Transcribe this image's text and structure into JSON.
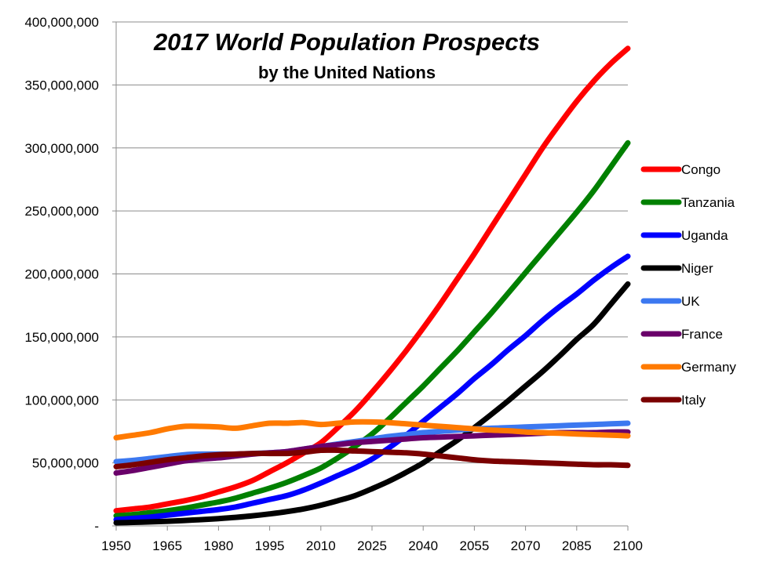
{
  "chart_data": {
    "type": "line",
    "title": "2017 World Population Prospects",
    "subtitle": "by the United Nations",
    "xlabel": "",
    "ylabel": "",
    "xlim": [
      1950,
      2100
    ],
    "ylim": [
      0,
      400000000
    ],
    "x_ticks": [
      1950,
      1965,
      1980,
      1995,
      2010,
      2025,
      2040,
      2055,
      2070,
      2085,
      2100
    ],
    "y_ticks": [
      0,
      50000000,
      100000000,
      150000000,
      200000000,
      250000000,
      300000000,
      350000000,
      400000000
    ],
    "y_tick_labels": [
      "-",
      "50,000,000",
      "100,000,000",
      "150,000,000",
      "200,000,000",
      "250,000,000",
      "300,000,000",
      "350,000,000",
      "400,000,000"
    ],
    "x_tick_labels": [
      "1950",
      "1965",
      "1980",
      "1995",
      "2010",
      "2025",
      "2040",
      "2055",
      "2070",
      "2085",
      "2100"
    ],
    "grid": true,
    "legend_position": "right",
    "x": [
      1950,
      1955,
      1960,
      1965,
      1970,
      1975,
      1980,
      1985,
      1990,
      1995,
      2000,
      2005,
      2010,
      2015,
      2020,
      2025,
      2030,
      2035,
      2040,
      2045,
      2050,
      2055,
      2060,
      2065,
      2070,
      2075,
      2080,
      2085,
      2090,
      2095,
      2100
    ],
    "series": [
      {
        "name": "Congo",
        "color": "#ff0000",
        "values": [
          12000000,
          13500000,
          15000000,
          17500000,
          20000000,
          23000000,
          27000000,
          31000000,
          36000000,
          43000000,
          50000000,
          58000000,
          66000000,
          78000000,
          91000000,
          106000000,
          122000000,
          139000000,
          157000000,
          176000000,
          196000000,
          216000000,
          237000000,
          258000000,
          279000000,
          300000000,
          319000000,
          337000000,
          353000000,
          367000000,
          379000000
        ]
      },
      {
        "name": "Tanzania",
        "color": "#008000",
        "values": [
          8000000,
          9000000,
          10500000,
          12000000,
          14000000,
          16500000,
          19000000,
          22000000,
          26000000,
          30000000,
          34500000,
          40000000,
          46000000,
          54000000,
          63000000,
          73000000,
          85000000,
          98000000,
          111000000,
          125000000,
          139000000,
          154000000,
          169000000,
          185000000,
          201000000,
          217000000,
          233000000,
          249000000,
          266000000,
          285000000,
          304000000
        ]
      },
      {
        "name": "Uganda",
        "color": "#0000ff",
        "values": [
          5000000,
          6000000,
          7000000,
          8500000,
          10000000,
          11500000,
          13000000,
          15000000,
          18000000,
          21000000,
          24000000,
          28500000,
          34000000,
          40000000,
          46000000,
          53000000,
          62000000,
          72000000,
          83000000,
          94000000,
          105000000,
          117000000,
          128000000,
          140000000,
          151000000,
          163000000,
          174000000,
          184000000,
          195000000,
          205000000,
          214000000
        ]
      },
      {
        "name": "Niger",
        "color": "#000000",
        "values": [
          2500000,
          2800000,
          3200000,
          3700000,
          4300000,
          5000000,
          5800000,
          6800000,
          8000000,
          9500000,
          11300000,
          13500000,
          16400000,
          20000000,
          24000000,
          29500000,
          35500000,
          42500000,
          50000000,
          59000000,
          68000000,
          78000000,
          88500000,
          99500000,
          111000000,
          122500000,
          135000000,
          148000000,
          160000000,
          176000000,
          192000000
        ]
      },
      {
        "name": "UK",
        "color": "#3c78f0",
        "values": [
          51000000,
          52000000,
          53500000,
          55000000,
          56500000,
          57000000,
          57000000,
          57000000,
          57500000,
          58000000,
          59000000,
          61000000,
          63000000,
          65000000,
          67000000,
          69000000,
          71000000,
          72500000,
          74000000,
          75000000,
          76000000,
          77000000,
          77500000,
          78000000,
          78500000,
          79000000,
          79500000,
          80000000,
          80500000,
          81000000,
          81500000
        ]
      },
      {
        "name": "France",
        "color": "#6a006a",
        "values": [
          42000000,
          44000000,
          46500000,
          49000000,
          51500000,
          53000000,
          54000000,
          55500000,
          57000000,
          58000000,
          59000000,
          61000000,
          63000000,
          64500000,
          66000000,
          67000000,
          68000000,
          69000000,
          70000000,
          70500000,
          71000000,
          71500000,
          72000000,
          72500000,
          73000000,
          73500000,
          74000000,
          74000000,
          74000000,
          74500000,
          74500000
        ]
      },
      {
        "name": "Germany",
        "color": "#ff7a00",
        "values": [
          70000000,
          72000000,
          74000000,
          77000000,
          79000000,
          79000000,
          78500000,
          77500000,
          79500000,
          81500000,
          81500000,
          82000000,
          80500000,
          81500000,
          82500000,
          82500000,
          82000000,
          81000000,
          80000000,
          79000000,
          78000000,
          77000000,
          76000000,
          75500000,
          74500000,
          74000000,
          73500000,
          73000000,
          72500000,
          72000000,
          71500000
        ]
      },
      {
        "name": "Italy",
        "color": "#7a0000",
        "values": [
          47000000,
          48500000,
          50500000,
          52500000,
          54000000,
          55500000,
          56500000,
          57000000,
          57500000,
          57500000,
          57500000,
          58500000,
          60000000,
          60000000,
          59500000,
          59000000,
          58500000,
          58000000,
          57000000,
          55500000,
          54000000,
          52500000,
          51500000,
          51000000,
          50500000,
          50000000,
          49500000,
          49000000,
          48500000,
          48500000,
          48000000
        ]
      }
    ]
  }
}
